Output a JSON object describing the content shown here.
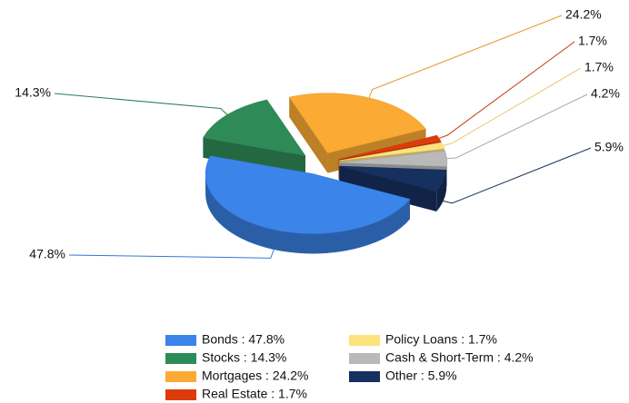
{
  "chart_data": {
    "type": "pie",
    "legend": [
      "Bonds : 47.8%",
      "Stocks : 14.3%",
      "Mortgages : 24.2%",
      "Real Estate : 1.7%",
      "Policy Loans : 1.7%",
      "Cash & Short-Term : 4.2%",
      "Other : 5.9%"
    ],
    "values": [
      47.8,
      14.3,
      24.2,
      1.7,
      1.7,
      4.2,
      5.9
    ],
    "value_labels": [
      "47.8%",
      "14.3%",
      "24.2%",
      "1.7%",
      "1.7%",
      "4.2%",
      "5.9%"
    ],
    "colors": [
      "#3b84ea",
      "#2e8b57",
      "#fbaa33",
      "#de3b0c",
      "#fde17c",
      "#b9b9b9",
      "#16305f"
    ]
  }
}
